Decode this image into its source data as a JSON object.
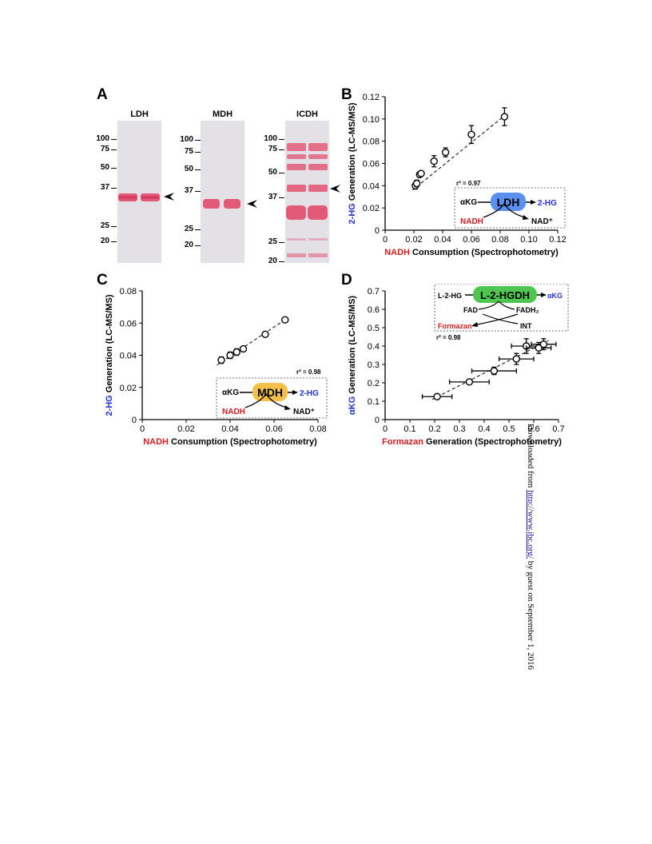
{
  "panels": {
    "A": {
      "letter": "A",
      "gels": [
        {
          "title": "LDH",
          "markers": [
            "100",
            "75",
            "50",
            "37",
            "25",
            "20"
          ]
        },
        {
          "title": "MDH",
          "markers": [
            "100",
            "75",
            "50",
            "37",
            "25",
            "20"
          ]
        },
        {
          "title": "ICDH",
          "markers": [
            "100",
            "75",
            "50",
            "37",
            "25",
            "20"
          ]
        }
      ]
    },
    "B": {
      "letter": "B"
    },
    "C": {
      "letter": "C"
    },
    "D": {
      "letter": "D"
    }
  },
  "chart_data": [
    {
      "panel": "B",
      "type": "scatter",
      "xlabel_highlight": "NADH",
      "xlabel_rest": " Consumption (Spectrophotometry)",
      "ylabel_highlight": "2-HG",
      "ylabel_rest": " Generation (LC-MS/MS)",
      "xlim": [
        0,
        0.12
      ],
      "ylim": [
        0,
        0.12
      ],
      "xticks": [
        "0",
        "0.02",
        "0.04",
        "0.06",
        "0.08",
        "0.10",
        "0.12"
      ],
      "yticks": [
        "0",
        "0.02",
        "0.04",
        "0.06",
        "0.08",
        "0.10",
        "0.12"
      ],
      "points": [
        {
          "x": 0.021,
          "y": 0.04,
          "xerr": 0,
          "yerr": 0.003
        },
        {
          "x": 0.022,
          "y": 0.042,
          "xerr": 0,
          "yerr": 0.003
        },
        {
          "x": 0.024,
          "y": 0.05,
          "xerr": 0,
          "yerr": 0.002
        },
        {
          "x": 0.025,
          "y": 0.051,
          "xerr": 0,
          "yerr": 0.002
        },
        {
          "x": 0.034,
          "y": 0.062,
          "xerr": 0,
          "yerr": 0.005
        },
        {
          "x": 0.042,
          "y": 0.07,
          "xerr": 0,
          "yerr": 0.004
        },
        {
          "x": 0.06,
          "y": 0.086,
          "xerr": 0,
          "yerr": 0.008
        },
        {
          "x": 0.083,
          "y": 0.102,
          "xerr": 0,
          "yerr": 0.008
        }
      ],
      "fit": {
        "x": [
          0.019,
          0.085
        ],
        "y": [
          0.036,
          0.105
        ]
      },
      "r2": "r² = 0.97",
      "scheme": {
        "substrate": "αKG",
        "enzyme": "LDH",
        "product": "2-HG",
        "cofactor_in": "NADH",
        "cofactor_out": "NAD⁺",
        "enzyme_color": "#5b8ff0"
      }
    },
    {
      "panel": "C",
      "type": "scatter",
      "xlabel_highlight": "NADH",
      "xlabel_rest": " Consumption (Spectrophotometry)",
      "ylabel_highlight": "2-HG",
      "ylabel_rest": " Generation (LC-MS/MS)",
      "xlim": [
        0,
        0.08
      ],
      "ylim": [
        0,
        0.08
      ],
      "xticks": [
        "0",
        "0.02",
        "0.04",
        "0.06",
        "0.08"
      ],
      "yticks": [
        "0",
        "0.02",
        "0.04",
        "0.06",
        "0.08"
      ],
      "points": [
        {
          "x": 0.036,
          "y": 0.037,
          "xerr": 0.001,
          "yerr": 0.002
        },
        {
          "x": 0.04,
          "y": 0.04,
          "xerr": 0.001,
          "yerr": 0.002
        },
        {
          "x": 0.043,
          "y": 0.042,
          "xerr": 0.001,
          "yerr": 0.002
        },
        {
          "x": 0.046,
          "y": 0.044,
          "xerr": 0.001,
          "yerr": 0.001
        },
        {
          "x": 0.056,
          "y": 0.053,
          "xerr": 0.001,
          "yerr": 0.001
        },
        {
          "x": 0.065,
          "y": 0.062,
          "xerr": 0.001,
          "yerr": 0.001
        }
      ],
      "fit": {
        "x": [
          0.034,
          0.066
        ],
        "y": [
          0.034,
          0.063
        ]
      },
      "r2": "r² = 0.98",
      "scheme": {
        "substrate": "αKG",
        "enzyme": "MDH",
        "product": "2-HG",
        "cofactor_in": "NADH",
        "cofactor_out": "NAD⁺",
        "enzyme_color": "#f5c04a"
      }
    },
    {
      "panel": "D",
      "type": "scatter",
      "xlabel_highlight": "Formazan",
      "xlabel_rest": " Generation (Spectrophotometry)",
      "ylabel_highlight": "αKG",
      "ylabel_rest": " Generation (LC-MS/MS)",
      "xlim": [
        0,
        0.7
      ],
      "ylim": [
        0,
        0.7
      ],
      "xticks": [
        "0",
        "0.1",
        "0.2",
        "0.3",
        "0.4",
        "0.5",
        "0.6",
        "0.7"
      ],
      "yticks": [
        "0",
        "0.1",
        "0.2",
        "0.3",
        "0.4",
        "0.5",
        "0.6",
        "0.7"
      ],
      "points": [
        {
          "x": 0.21,
          "y": 0.125,
          "xerr": 0.06,
          "yerr": 0.005
        },
        {
          "x": 0.34,
          "y": 0.205,
          "xerr": 0.08,
          "yerr": 0.01
        },
        {
          "x": 0.44,
          "y": 0.265,
          "xerr": 0.09,
          "yerr": 0.02
        },
        {
          "x": 0.53,
          "y": 0.33,
          "xerr": 0.07,
          "yerr": 0.03
        },
        {
          "x": 0.57,
          "y": 0.4,
          "xerr": 0.06,
          "yerr": 0.04
        },
        {
          "x": 0.62,
          "y": 0.39,
          "xerr": 0.05,
          "yerr": 0.03
        },
        {
          "x": 0.64,
          "y": 0.41,
          "xerr": 0.05,
          "yerr": 0.03
        }
      ],
      "fit": {
        "x": [
          0.19,
          0.66
        ],
        "y": [
          0.11,
          0.43
        ]
      },
      "r2": "r² = 0.98",
      "scheme": {
        "substrate": "L-2-HG",
        "enzyme": "L-2-HGDH",
        "product": "αKG",
        "cofactor_in": "FAD",
        "cofactor_out": "FADH₂",
        "dye_out": "Formazan",
        "dye_in": "INT",
        "enzyme_color": "#4fc64f"
      }
    }
  ],
  "side_note": {
    "prefix": "Downloaded from ",
    "link": "http://www.jbc.org/",
    "suffix": " by guest on September 1, 2016"
  }
}
